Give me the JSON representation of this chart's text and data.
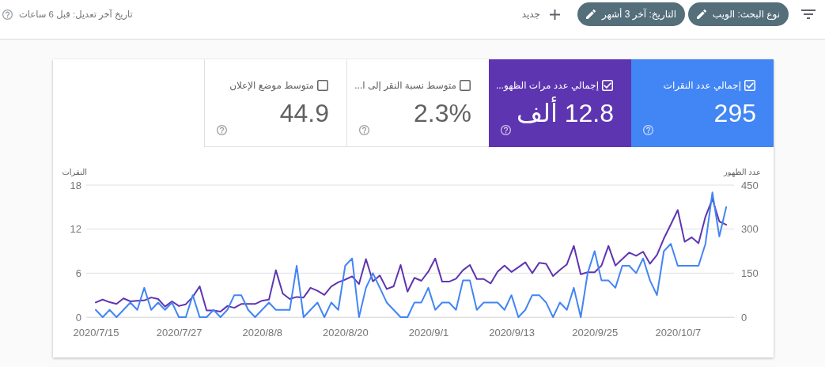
{
  "chart_data": [
    {
      "type": "other",
      "annotations": [
        "نوع البحث: الويب",
        "التاريخ: آخر 3 أشهر",
        "جديد",
        "تاريخ آخر تعديل: قبل 6 ساعات"
      ]
    },
    {
      "type": "other",
      "categories": [
        "إجمالي عدد النقرات",
        "إجمالي عدد مرات الظهو...",
        "متوسط نسبة النقر إلى ا...",
        "متوسط موضع الإعلان"
      ],
      "value_labels": [
        "295",
        "12.8 ألف",
        "2.3%",
        "44.9"
      ],
      "colors": [
        "#4285f4",
        "#5e35b1",
        "#ffffff",
        "#ffffff"
      ]
    },
    {
      "type": "line",
      "ylabel": "النقرات",
      "y2label": "عدد الظهور",
      "x": [
        "2020-07-15",
        "2020-07-16",
        "2020-07-17",
        "2020-07-18",
        "2020-07-19",
        "2020-07-20",
        "2020-07-21",
        "2020-07-22",
        "2020-07-23",
        "2020-07-24",
        "2020-07-25",
        "2020-07-26",
        "2020-07-27",
        "2020-07-28",
        "2020-07-29",
        "2020-07-30",
        "2020-07-31",
        "2020-08-01",
        "2020-08-02",
        "2020-08-03",
        "2020-08-04",
        "2020-08-05",
        "2020-08-06",
        "2020-08-07",
        "2020-08-08",
        "2020-08-09",
        "2020-08-10",
        "2020-08-11",
        "2020-08-12",
        "2020-08-13",
        "2020-08-14",
        "2020-08-15",
        "2020-08-16",
        "2020-08-17",
        "2020-08-18",
        "2020-08-19",
        "2020-08-20",
        "2020-08-21",
        "2020-08-22",
        "2020-08-23",
        "2020-08-24",
        "2020-08-25",
        "2020-08-26",
        "2020-08-27",
        "2020-08-28",
        "2020-08-29",
        "2020-08-30",
        "2020-08-31",
        "2020-09-01",
        "2020-09-02",
        "2020-09-03",
        "2020-09-04",
        "2020-09-05",
        "2020-09-06",
        "2020-09-07",
        "2020-09-08",
        "2020-09-09",
        "2020-09-10",
        "2020-09-11",
        "2020-09-12",
        "2020-09-13",
        "2020-09-14",
        "2020-09-15",
        "2020-09-16",
        "2020-09-17",
        "2020-09-18",
        "2020-09-19",
        "2020-09-20",
        "2020-09-21",
        "2020-09-22",
        "2020-09-23",
        "2020-09-24",
        "2020-09-25",
        "2020-09-26",
        "2020-09-27",
        "2020-09-28",
        "2020-09-29",
        "2020-09-30",
        "2020-10-01",
        "2020-10-02",
        "2020-10-03",
        "2020-10-04",
        "2020-10-05",
        "2020-10-06",
        "2020-10-07",
        "2020-10-08",
        "2020-10-09",
        "2020-10-10",
        "2020-10-11",
        "2020-10-12",
        "2020-10-13",
        "2020-10-14"
      ],
      "xlim": [
        "2020-07-13T15:00",
        "2020-10-15T03:00"
      ],
      "xticks": [
        {
          "value": "2020-07-15",
          "label": "2020/7/15"
        },
        {
          "value": "2020-07-27",
          "label": "2020/7/27"
        },
        {
          "value": "2020-08-08",
          "label": "2020/8/8"
        },
        {
          "value": "2020-08-20",
          "label": "2020/8/20"
        },
        {
          "value": "2020-09-01",
          "label": "2020/9/1"
        },
        {
          "value": "2020-09-13",
          "label": "2020/9/13"
        },
        {
          "value": "2020-09-25",
          "label": "2020/9/25"
        },
        {
          "value": "2020-10-07",
          "label": "2020/10/7"
        }
      ],
      "ylim": [
        0,
        18
      ],
      "yticks": [
        0,
        6,
        12,
        18
      ],
      "y2lim": [
        0,
        450
      ],
      "y2ticks": [
        0,
        150,
        300,
        450
      ],
      "grid": "y",
      "series": [
        {
          "color": "#5e35b1",
          "axis": "y2",
          "values": [
            50,
            60,
            51,
            45,
            64,
            54,
            56,
            57,
            67,
            62,
            36,
            54,
            38,
            44,
            69,
            105,
            23,
            23,
            19,
            38,
            32,
            45,
            45,
            45,
            56,
            60,
            160,
            80,
            62,
            69,
            67,
            100,
            90,
            76,
            105,
            119,
            128,
            139,
            113,
            198,
            122,
            142,
            96,
            105,
            178,
            87,
            134,
            124,
            155,
            200,
            121,
            121,
            131,
            160,
            178,
            130,
            130,
            115,
            155,
            176,
            154,
            170,
            187,
            150,
            185,
            182,
            140,
            161,
            180,
            243,
            146,
            153,
            153,
            176,
            243,
            176,
            198,
            220,
            209,
            223,
            182,
            212,
            268,
            316,
            365,
            257,
            272,
            252,
            342,
            403,
            326,
            315
          ]
        },
        {
          "color": "#4285f4",
          "values": [
            1,
            0,
            1,
            0,
            1,
            2,
            1,
            4,
            1,
            2,
            1,
            2,
            0,
            0,
            3,
            0,
            0,
            1,
            0,
            1,
            3,
            3,
            1,
            0,
            1,
            2,
            1,
            1,
            1,
            7,
            0,
            1,
            2,
            0,
            2,
            1,
            7,
            8,
            0,
            4,
            6,
            4,
            2,
            1,
            0,
            0,
            2,
            2,
            4,
            1,
            2,
            2,
            1,
            5,
            5,
            1,
            2,
            2,
            2,
            1,
            3,
            0,
            1,
            3,
            3,
            2,
            0,
            2,
            1,
            4,
            0,
            6,
            9,
            5,
            5,
            4,
            7,
            7,
            6,
            8,
            5,
            3,
            9,
            10,
            7,
            7,
            7,
            7,
            10,
            17,
            11,
            15
          ]
        }
      ]
    }
  ]
}
